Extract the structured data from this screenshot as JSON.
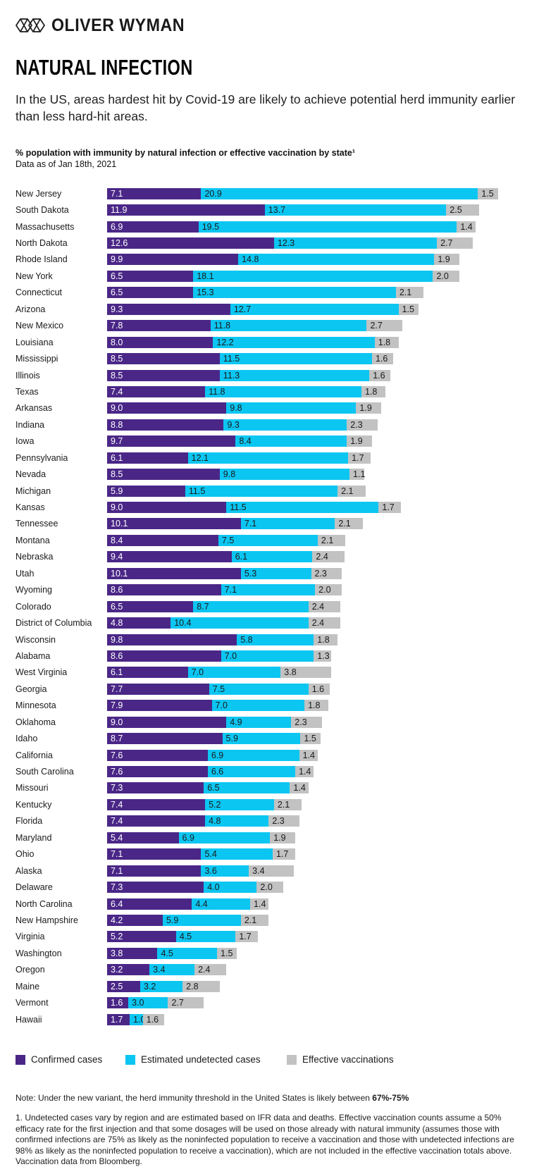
{
  "header": {
    "brand": "OLIVER WYMAN"
  },
  "title": "NATURAL INFECTION",
  "subtitle": "In the US, areas hardest hit by Covid-19 are likely to achieve potential herd immunity earlier than less hard-hit areas.",
  "chart_data": {
    "type": "bar",
    "orientation": "horizontal",
    "stacked": true,
    "title": "% population with immunity by natural infection or effective vaccination by state¹",
    "subtitle": "Data as of Jan 18th, 2021",
    "xlim": [
      0,
      29.5
    ],
    "grid": false,
    "legend_position": "bottom",
    "value_label_format": "one_decimal",
    "categories": [
      "New Jersey",
      "South Dakota",
      "Massachusetts",
      "North Dakota",
      "Rhode Island",
      "New York",
      "Connecticut",
      "Arizona",
      "New Mexico",
      "Louisiana",
      "Mississippi",
      "Illinois",
      "Texas",
      "Arkansas",
      "Indiana",
      "Iowa",
      "Pennsylvania",
      "Nevada",
      "Michigan",
      "Kansas",
      "Tennessee",
      "Montana",
      "Nebraska",
      "Utah",
      "Wyoming",
      "Colorado",
      "District of Columbia",
      "Wisconsin",
      "Alabama",
      "West Virginia",
      "Georgia",
      "Minnesota",
      "Oklahoma",
      "Idaho",
      "California",
      "South Carolina",
      "Missouri",
      "Kentucky",
      "Florida",
      "Maryland",
      "Ohio",
      "Alaska",
      "Delaware",
      "North Carolina",
      "New Hampshire",
      "Virginia",
      "Washington",
      "Oregon",
      "Maine",
      "Vermont",
      "Hawaii"
    ],
    "series": [
      {
        "key": "confirmed",
        "name": "Confirmed cases",
        "color": "#4A2787",
        "label_color": "#ffffff",
        "values": [
          7.1,
          11.9,
          6.9,
          12.6,
          9.9,
          6.5,
          6.5,
          9.3,
          7.8,
          8.0,
          8.5,
          8.5,
          7.4,
          9.0,
          8.8,
          9.7,
          6.1,
          8.5,
          5.9,
          9.0,
          10.1,
          8.4,
          9.4,
          10.1,
          8.6,
          6.5,
          4.8,
          9.8,
          8.6,
          6.1,
          7.7,
          7.9,
          9.0,
          8.7,
          7.6,
          7.6,
          7.3,
          7.4,
          7.4,
          5.4,
          7.1,
          7.1,
          7.3,
          6.4,
          4.2,
          5.2,
          3.8,
          3.2,
          2.5,
          1.6,
          1.7
        ]
      },
      {
        "key": "undetected",
        "name": "Estimated undetected cases",
        "color": "#0CC6F2",
        "label_color": "#1a1a1a",
        "values": [
          20.9,
          13.7,
          19.5,
          12.3,
          14.8,
          18.1,
          15.3,
          12.7,
          11.8,
          12.2,
          11.5,
          11.3,
          11.8,
          9.8,
          9.3,
          8.4,
          12.1,
          9.8,
          11.5,
          11.5,
          7.1,
          7.5,
          6.1,
          5.3,
          7.1,
          8.7,
          10.4,
          5.8,
          7.0,
          7.0,
          7.5,
          7.0,
          4.9,
          5.9,
          6.9,
          6.6,
          6.5,
          5.2,
          4.8,
          6.9,
          5.4,
          3.6,
          4.0,
          4.4,
          5.9,
          4.5,
          4.5,
          3.4,
          3.2,
          3.0,
          1.0
        ]
      },
      {
        "key": "vaccinations",
        "name": "Effective vaccinations",
        "color": "#C2C2C2",
        "label_color": "#1a1a1a",
        "values": [
          1.5,
          2.5,
          1.4,
          2.7,
          1.9,
          2.0,
          2.1,
          1.5,
          2.7,
          1.8,
          1.6,
          1.6,
          1.8,
          1.9,
          2.3,
          1.9,
          1.7,
          1.1,
          2.1,
          1.7,
          2.1,
          2.1,
          2.4,
          2.3,
          2.0,
          2.4,
          2.4,
          1.8,
          1.3,
          3.8,
          1.6,
          1.8,
          2.3,
          1.5,
          1.4,
          1.4,
          1.4,
          2.1,
          2.3,
          1.9,
          1.7,
          3.4,
          2.0,
          1.4,
          2.1,
          1.7,
          1.5,
          2.4,
          2.8,
          2.7,
          1.6
        ]
      }
    ]
  },
  "note": {
    "prefix": "Note: Under the new variant, the herd immunity threshold in the United States is likely between ",
    "bold": "67%-75%"
  },
  "footnote": "1. Undetected cases vary by region and are estimated based on IFR data and deaths. Effective vaccination counts assume a 50% efficacy rate for the first injection and that some dosages will be used on those already with natural immunity (assumes those with confirmed infections are 75% as likely as the noninfected population to receive a vaccination and those with undetected infections are 98% as likely as the noninfected population to receive a vaccination), which are not included in the effective vaccination totals above. Vaccination data from Bloomberg."
}
